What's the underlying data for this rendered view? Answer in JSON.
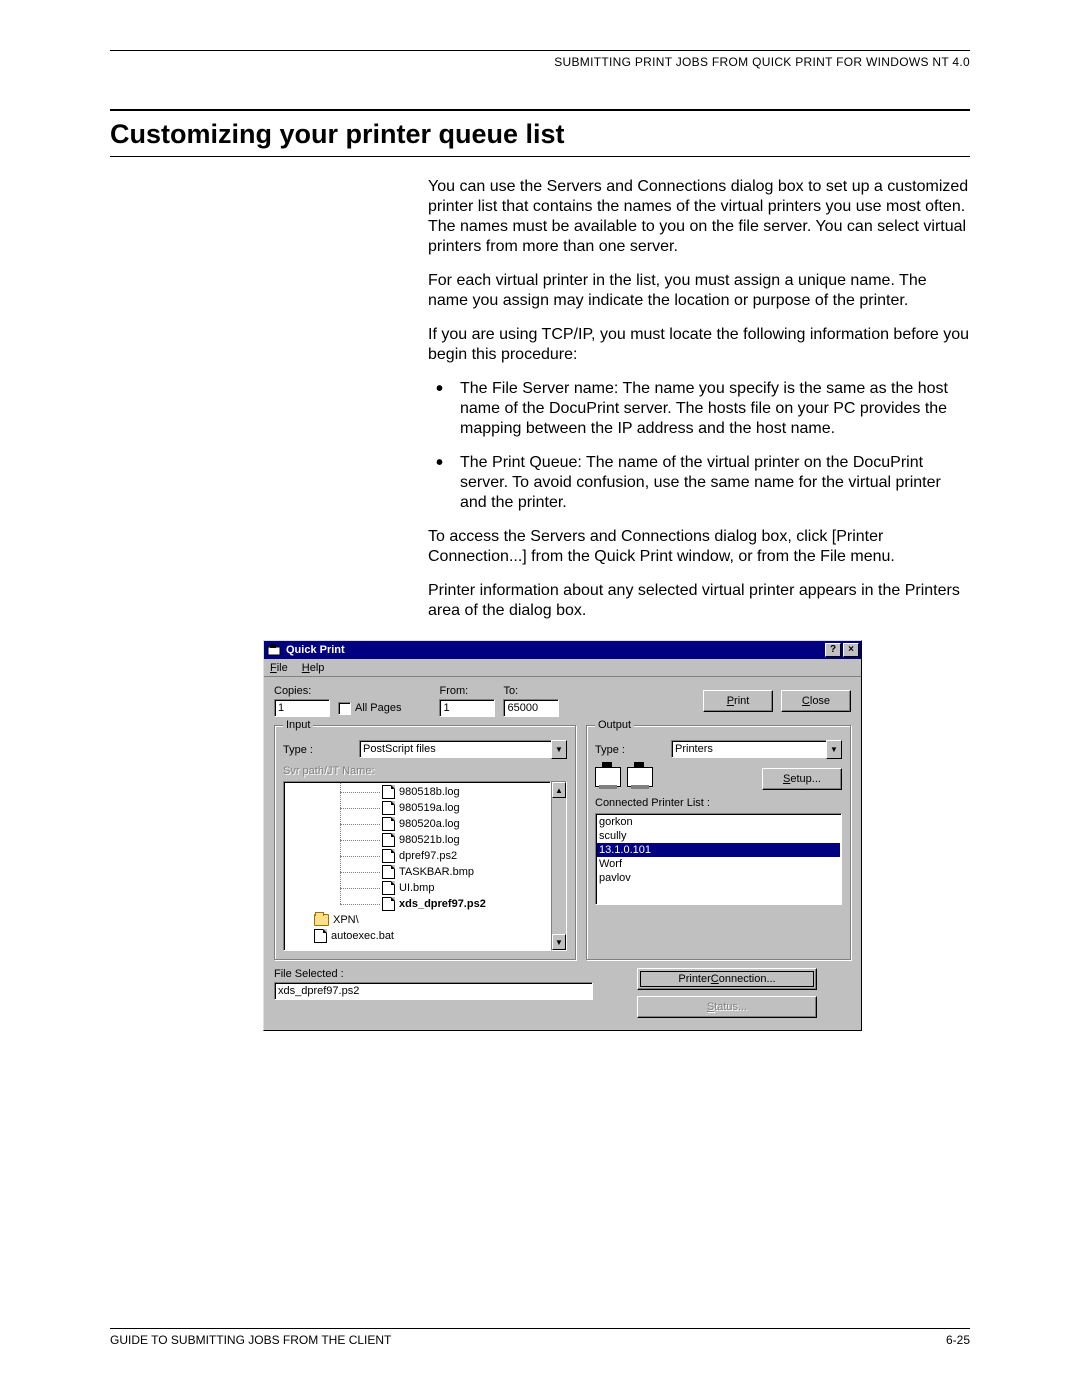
{
  "page": {
    "header": "SUBMITTING PRINT JOBS FROM QUICK PRINT FOR WINDOWS NT 4.0",
    "title": "Customizing your printer queue list",
    "footer_left": "GUIDE TO SUBMITTING JOBS FROM THE CLIENT",
    "footer_right": "6-25"
  },
  "para": {
    "p1": "You can use the Servers and Connections dialog box to set up a customized printer list that contains the names of the virtual printers you use most often. The names must be available to you on the file server. You can select virtual printers from more than one server.",
    "p2": "For each virtual printer in the list, you must assign a unique name. The name you assign may indicate the location or purpose of the printer.",
    "p3": "If you are using TCP/IP, you must locate the following information before you begin this procedure:",
    "b1": "The File Server name: The name you specify is the same as the host name of the DocuPrint server. The hosts file on your PC provides the mapping between the IP address and the host name.",
    "b2": "The Print Queue: The name of the virtual printer on the DocuPrint server. To avoid confusion, use the same name for the virtual printer and the printer.",
    "p4": "To access the Servers and Connections dialog box, click [Printer Connection...] from the Quick Print window, or from the File menu.",
    "p5": "Printer information about any selected virtual printer appears in the Printers area of the dialog box."
  },
  "dialog": {
    "title": "Quick Print",
    "menu": {
      "file": "File",
      "help": "Help"
    },
    "labels": {
      "copies": "Copies:",
      "all_pages": "All Pages",
      "from": "From:",
      "to": "To:",
      "input": "Input",
      "output": "Output",
      "type": "Type :",
      "svr_path": "Svr path/JT Name:",
      "file_selected": "File Selected :",
      "connected": "Connected Printer List :"
    },
    "values": {
      "copies": "1",
      "from": "1",
      "to": "65000",
      "input_type": "PostScript files",
      "output_type": "Printers",
      "file_selected": "xds_dpref97.ps2"
    },
    "buttons": {
      "print": "Print",
      "close": "Close",
      "setup": "Setup...",
      "printer_connection": "Printer Connection...",
      "status": "Status..."
    },
    "tree": [
      {
        "name": "980518b.log",
        "type": "file",
        "lvl": 1,
        "sel": false
      },
      {
        "name": "980519a.log",
        "type": "file",
        "lvl": 1,
        "sel": false
      },
      {
        "name": "980520a.log",
        "type": "file",
        "lvl": 1,
        "sel": false
      },
      {
        "name": "980521b.log",
        "type": "file",
        "lvl": 1,
        "sel": false
      },
      {
        "name": "dpref97.ps2",
        "type": "file",
        "lvl": 1,
        "sel": false
      },
      {
        "name": "TASKBAR.bmp",
        "type": "file",
        "lvl": 1,
        "sel": false
      },
      {
        "name": "UI.bmp",
        "type": "file",
        "lvl": 1,
        "sel": false
      },
      {
        "name": "xds_dpref97.ps2",
        "type": "file",
        "lvl": 1,
        "sel": true
      },
      {
        "name": "XPN\\",
        "type": "folder",
        "lvl": 0,
        "sel": false
      },
      {
        "name": "autoexec.bat",
        "type": "file",
        "lvl": 0,
        "sel": false
      }
    ],
    "printers": [
      {
        "name": "gorkon",
        "sel": false
      },
      {
        "name": "scully",
        "sel": false
      },
      {
        "name": "13.1.0.101",
        "sel": true
      },
      {
        "name": "Worf",
        "sel": false
      },
      {
        "name": "pavlov",
        "sel": false
      }
    ]
  },
  "style": {
    "bg": "#c0c0c0",
    "titlebar_bg": "#000080",
    "titlebar_fg": "#ffffff",
    "sel_bg": "#000080",
    "sel_fg": "#ffffff",
    "disabled_fg": "#808080"
  }
}
